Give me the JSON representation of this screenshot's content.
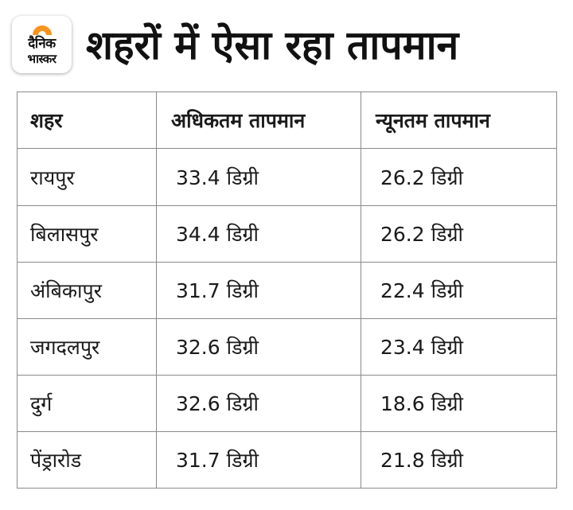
{
  "header": {
    "logo": {
      "line1": "दैनिक",
      "line2": "भास्कर",
      "sun_color": "#f7941d"
    },
    "title": "शहरों में ऐसा रहा तापमान"
  },
  "table": {
    "columns": [
      "शहर",
      "अधिकतम तापमान",
      "न्यूनतम तापमान"
    ],
    "rows": [
      {
        "city": "रायपुर",
        "max": "33.4 डिग्री",
        "min": "26.2 डिग्री"
      },
      {
        "city": "बिलासपुर",
        "max": "34.4 डिग्री",
        "min": "26.2 डिग्री"
      },
      {
        "city": "अंबिकापुर",
        "max": "31.7 डिग्री",
        "min": "22.4 डिग्री"
      },
      {
        "city": "जगदलपुर",
        "max": "32.6 डिग्री",
        "min": "23.4 डिग्री"
      },
      {
        "city": "दुर्ग",
        "max": "32.6 डिग्री",
        "min": "18.6 डिग्री"
      },
      {
        "city": "पेंड्रारोड",
        "max": "31.7 डिग्री",
        "min": "21.8 डिग्री"
      }
    ]
  }
}
